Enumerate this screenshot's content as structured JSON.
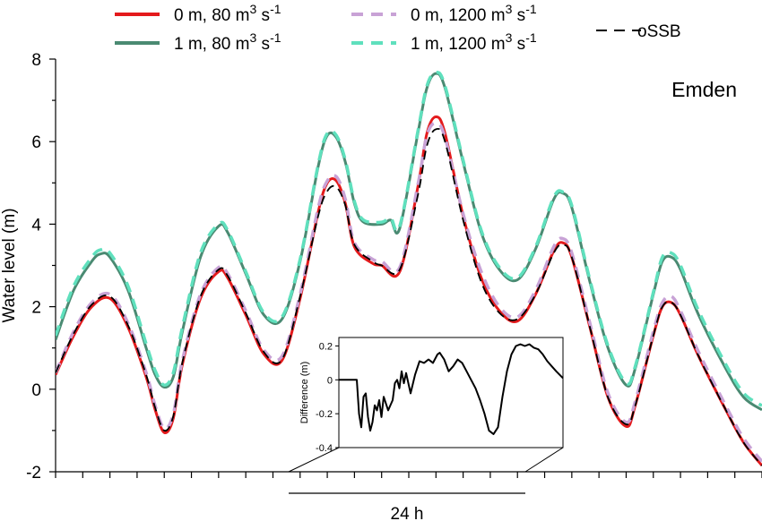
{
  "chart_data": {
    "type": "line",
    "ylabel": "Water level (m)",
    "ylim": [
      -2,
      8
    ],
    "yticks": [
      -2,
      0,
      2,
      4,
      6,
      8
    ],
    "xlim": [
      0,
      78
    ],
    "annotation": "Emden",
    "scale_bar_label": "24 h",
    "legend": [
      {
        "label": "0 m, 80 m",
        "sup": "3",
        "tail": " s",
        "sup2": "-1",
        "color": "#e41a1c",
        "dash": "solid"
      },
      {
        "label": "1 m, 80 m",
        "sup": "3",
        "tail": " s",
        "sup2": "-1",
        "color": "#4a8a72",
        "dash": "solid"
      },
      {
        "label": "0 m, 1200 m",
        "sup": "3",
        "tail": " s",
        "sup2": "-1",
        "color": "#c8a2d6",
        "dash": "dashed"
      },
      {
        "label": "1 m, 1200 m",
        "sup": "3",
        "tail": " s",
        "sup2": "-1",
        "color": "#5fe0bd",
        "dash": "dashed"
      },
      {
        "label": "oSSB",
        "color": "#000000",
        "dash": "dashed"
      }
    ],
    "series": [
      {
        "name": "0 m, 80 m3 s-1",
        "color": "#e41a1c",
        "width": 3,
        "dash": "",
        "points": [
          [
            0,
            0.35
          ],
          [
            2,
            1.3
          ],
          [
            4,
            2.0
          ],
          [
            6,
            2.2
          ],
          [
            8,
            1.5
          ],
          [
            10,
            0.3
          ],
          [
            11,
            -0.5
          ],
          [
            12,
            -1.05
          ],
          [
            13,
            -0.7
          ],
          [
            14,
            0.6
          ],
          [
            16,
            2.2
          ],
          [
            18,
            2.85
          ],
          [
            19,
            2.7
          ],
          [
            21,
            1.8
          ],
          [
            23,
            0.85
          ],
          [
            25,
            0.7
          ],
          [
            27,
            2.2
          ],
          [
            29,
            4.3
          ],
          [
            30,
            5.0
          ],
          [
            31,
            5.05
          ],
          [
            32,
            4.5
          ],
          [
            33,
            3.45
          ],
          [
            35,
            3.05
          ],
          [
            36,
            3.0
          ],
          [
            38,
            2.85
          ],
          [
            40,
            4.9
          ],
          [
            41,
            6.2
          ],
          [
            42,
            6.6
          ],
          [
            43,
            6.2
          ],
          [
            45,
            4.2
          ],
          [
            47,
            2.7
          ],
          [
            49,
            1.9
          ],
          [
            51,
            1.65
          ],
          [
            53,
            2.3
          ],
          [
            55,
            3.35
          ],
          [
            56,
            3.55
          ],
          [
            57,
            3.2
          ],
          [
            59,
            1.5
          ],
          [
            61,
            -0.2
          ],
          [
            63,
            -0.9
          ],
          [
            64,
            -0.4
          ],
          [
            66,
            1.3
          ],
          [
            67,
            2.0
          ],
          [
            68,
            2.1
          ],
          [
            69,
            1.8
          ],
          [
            71,
            0.8
          ],
          [
            74,
            -0.5
          ],
          [
            76,
            -1.3
          ],
          [
            78,
            -1.85
          ]
        ]
      },
      {
        "name": "1 m, 80 m3 s-1",
        "color": "#4a8a72",
        "width": 3,
        "dash": "",
        "points": [
          [
            0,
            1.2
          ],
          [
            2,
            2.4
          ],
          [
            4,
            3.1
          ],
          [
            5,
            3.28
          ],
          [
            6,
            3.2
          ],
          [
            8,
            2.4
          ],
          [
            10,
            1.0
          ],
          [
            11,
            0.35
          ],
          [
            12,
            0.05
          ],
          [
            13,
            0.3
          ],
          [
            14,
            1.4
          ],
          [
            16,
            3.2
          ],
          [
            18,
            3.95
          ],
          [
            19,
            3.8
          ],
          [
            21,
            2.8
          ],
          [
            23,
            1.8
          ],
          [
            25,
            1.7
          ],
          [
            27,
            3.1
          ],
          [
            29,
            5.4
          ],
          [
            30,
            6.15
          ],
          [
            31,
            6.1
          ],
          [
            32,
            5.5
          ],
          [
            33,
            4.5
          ],
          [
            34,
            4.05
          ],
          [
            36,
            4.0
          ],
          [
            37,
            4.1
          ],
          [
            38,
            3.9
          ],
          [
            40,
            6.2
          ],
          [
            41,
            7.3
          ],
          [
            42,
            7.65
          ],
          [
            43,
            7.3
          ],
          [
            45,
            5.5
          ],
          [
            47,
            3.8
          ],
          [
            49,
            2.9
          ],
          [
            51,
            2.65
          ],
          [
            53,
            3.4
          ],
          [
            55,
            4.6
          ],
          [
            56,
            4.75
          ],
          [
            57,
            4.4
          ],
          [
            59,
            2.6
          ],
          [
            61,
            1.0
          ],
          [
            63,
            0.1
          ],
          [
            64,
            0.5
          ],
          [
            66,
            2.3
          ],
          [
            67,
            3.1
          ],
          [
            68,
            3.2
          ],
          [
            69,
            2.9
          ],
          [
            71,
            1.8
          ],
          [
            74,
            0.5
          ],
          [
            76,
            -0.2
          ],
          [
            78,
            -0.5
          ]
        ]
      },
      {
        "name": "0 m, 1200 m3 s-1",
        "color": "#c8a2d6",
        "width": 3.5,
        "dash": "12 8",
        "points": [
          [
            0,
            0.4
          ],
          [
            2,
            1.4
          ],
          [
            4,
            2.1
          ],
          [
            6,
            2.3
          ],
          [
            8,
            1.6
          ],
          [
            10,
            0.4
          ],
          [
            11,
            -0.4
          ],
          [
            12,
            -0.95
          ],
          [
            13,
            -0.6
          ],
          [
            14,
            0.7
          ],
          [
            16,
            2.3
          ],
          [
            18,
            2.95
          ],
          [
            19,
            2.8
          ],
          [
            21,
            1.9
          ],
          [
            23,
            0.95
          ],
          [
            25,
            0.8
          ],
          [
            27,
            2.3
          ],
          [
            29,
            4.4
          ],
          [
            30,
            5.05
          ],
          [
            31,
            5.15
          ],
          [
            32,
            4.6
          ],
          [
            33,
            3.55
          ],
          [
            35,
            3.15
          ],
          [
            36,
            3.1
          ],
          [
            38,
            2.95
          ],
          [
            40,
            4.95
          ],
          [
            41,
            6.15
          ],
          [
            42,
            6.45
          ],
          [
            43,
            6.1
          ],
          [
            45,
            4.25
          ],
          [
            47,
            2.85
          ],
          [
            49,
            2.0
          ],
          [
            51,
            1.75
          ],
          [
            53,
            2.4
          ],
          [
            55,
            3.45
          ],
          [
            56,
            3.65
          ],
          [
            57,
            3.3
          ],
          [
            59,
            1.6
          ],
          [
            61,
            -0.1
          ],
          [
            63,
            -0.8
          ],
          [
            64,
            -0.3
          ],
          [
            66,
            1.4
          ],
          [
            67,
            2.1
          ],
          [
            68,
            2.25
          ],
          [
            69,
            1.9
          ],
          [
            71,
            0.9
          ],
          [
            74,
            -0.4
          ],
          [
            76,
            -1.2
          ],
          [
            78,
            -1.75
          ]
        ]
      },
      {
        "name": "1 m, 1200 m3 s-1",
        "color": "#5fe0bd",
        "width": 3.5,
        "dash": "12 8",
        "points": [
          [
            0,
            1.3
          ],
          [
            2,
            2.5
          ],
          [
            4,
            3.2
          ],
          [
            5,
            3.38
          ],
          [
            6,
            3.3
          ],
          [
            8,
            2.5
          ],
          [
            10,
            1.1
          ],
          [
            11,
            0.45
          ],
          [
            12,
            0.1
          ],
          [
            13,
            0.4
          ],
          [
            14,
            1.5
          ],
          [
            16,
            3.3
          ],
          [
            18,
            4.0
          ],
          [
            19,
            3.85
          ],
          [
            21,
            2.85
          ],
          [
            23,
            1.85
          ],
          [
            25,
            1.75
          ],
          [
            27,
            3.15
          ],
          [
            29,
            5.45
          ],
          [
            30,
            6.2
          ],
          [
            31,
            6.15
          ],
          [
            32,
            5.55
          ],
          [
            33,
            4.55
          ],
          [
            34,
            4.1
          ],
          [
            36,
            4.05
          ],
          [
            37,
            4.15
          ],
          [
            38,
            3.95
          ],
          [
            40,
            6.25
          ],
          [
            41,
            7.35
          ],
          [
            42,
            7.68
          ],
          [
            43,
            7.35
          ],
          [
            45,
            5.55
          ],
          [
            47,
            3.85
          ],
          [
            49,
            2.95
          ],
          [
            51,
            2.7
          ],
          [
            53,
            3.45
          ],
          [
            55,
            4.65
          ],
          [
            56,
            4.78
          ],
          [
            57,
            4.45
          ],
          [
            59,
            2.65
          ],
          [
            61,
            1.05
          ],
          [
            63,
            0.15
          ],
          [
            64,
            0.55
          ],
          [
            66,
            2.35
          ],
          [
            67,
            3.2
          ],
          [
            68,
            3.3
          ],
          [
            69,
            3.0
          ],
          [
            71,
            1.9
          ],
          [
            74,
            0.6
          ],
          [
            76,
            -0.1
          ],
          [
            78,
            -0.4
          ]
        ]
      },
      {
        "name": "oSSB",
        "color": "#000000",
        "width": 1.8,
        "dash": "10 6",
        "points": [
          [
            0,
            0.4
          ],
          [
            2,
            1.35
          ],
          [
            4,
            2.05
          ],
          [
            6,
            2.25
          ],
          [
            8,
            1.55
          ],
          [
            10,
            0.35
          ],
          [
            11,
            -0.45
          ],
          [
            12,
            -1.0
          ],
          [
            13,
            -0.65
          ],
          [
            14,
            0.65
          ],
          [
            16,
            2.25
          ],
          [
            18,
            2.9
          ],
          [
            19,
            2.75
          ],
          [
            21,
            1.85
          ],
          [
            23,
            0.9
          ],
          [
            25,
            0.72
          ],
          [
            27,
            2.25
          ],
          [
            29,
            4.2
          ],
          [
            30,
            4.8
          ],
          [
            31,
            4.9
          ],
          [
            32,
            4.45
          ],
          [
            33,
            3.5
          ],
          [
            35,
            3.1
          ],
          [
            36,
            3.0
          ],
          [
            38,
            2.9
          ],
          [
            40,
            4.7
          ],
          [
            41,
            5.9
          ],
          [
            42,
            6.3
          ],
          [
            43,
            6.0
          ],
          [
            45,
            4.1
          ],
          [
            47,
            2.6
          ],
          [
            49,
            1.85
          ],
          [
            51,
            1.7
          ],
          [
            53,
            2.3
          ],
          [
            55,
            3.3
          ],
          [
            56,
            3.5
          ],
          [
            57,
            3.2
          ],
          [
            59,
            1.5
          ],
          [
            61,
            -0.2
          ],
          [
            63,
            -0.85
          ],
          [
            64,
            -0.4
          ],
          [
            66,
            1.3
          ],
          [
            67,
            2.0
          ],
          [
            68,
            2.1
          ],
          [
            69,
            1.8
          ],
          [
            71,
            0.8
          ],
          [
            74,
            -0.5
          ],
          [
            76,
            -1.3
          ],
          [
            78,
            -1.85
          ]
        ]
      }
    ],
    "inset": {
      "ylabel": "Difference (m)",
      "ylim": [
        -0.4,
        0.25
      ],
      "yticks": [
        -0.4,
        -0.2,
        0,
        0.2
      ],
      "ytick_labels": [
        "-0.4",
        "-0.2",
        "0",
        "0.2"
      ],
      "xlim": [
        0,
        100
      ],
      "points": [
        [
          0,
          0
        ],
        [
          7,
          0
        ],
        [
          8,
          0.0
        ],
        [
          9,
          -0.2
        ],
        [
          10,
          -0.28
        ],
        [
          11,
          -0.1
        ],
        [
          12,
          -0.08
        ],
        [
          13,
          -0.22
        ],
        [
          14,
          -0.3
        ],
        [
          15,
          -0.25
        ],
        [
          16,
          -0.15
        ],
        [
          17,
          -0.18
        ],
        [
          18,
          -0.12
        ],
        [
          19,
          -0.22
        ],
        [
          20,
          -0.1
        ],
        [
          22,
          -0.18
        ],
        [
          24,
          -0.12
        ],
        [
          25,
          -0.02
        ],
        [
          26,
          0.0
        ],
        [
          27,
          -0.05
        ],
        [
          28,
          0.05
        ],
        [
          29,
          -0.02
        ],
        [
          30,
          0.04
        ],
        [
          32,
          -0.08
        ],
        [
          34,
          0.03
        ],
        [
          36,
          0.11
        ],
        [
          38,
          0.1
        ],
        [
          40,
          0.12
        ],
        [
          42,
          0.1
        ],
        [
          44,
          0.15
        ],
        [
          45,
          0.16
        ],
        [
          47,
          0.12
        ],
        [
          49,
          0.05
        ],
        [
          51,
          0.08
        ],
        [
          53,
          0.12
        ],
        [
          55,
          0.1
        ],
        [
          57,
          0.05
        ],
        [
          59,
          0.0
        ],
        [
          61,
          -0.05
        ],
        [
          63,
          -0.12
        ],
        [
          65,
          -0.2
        ],
        [
          67,
          -0.3
        ],
        [
          69,
          -0.32
        ],
        [
          71,
          -0.28
        ],
        [
          73,
          -0.1
        ],
        [
          75,
          0.05
        ],
        [
          77,
          0.15
        ],
        [
          79,
          0.2
        ],
        [
          81,
          0.21
        ],
        [
          83,
          0.2
        ],
        [
          85,
          0.21
        ],
        [
          87,
          0.19
        ],
        [
          89,
          0.18
        ],
        [
          91,
          0.15
        ],
        [
          93,
          0.11
        ],
        [
          95,
          0.08
        ],
        [
          97,
          0.05
        ],
        [
          100,
          0.01
        ]
      ]
    }
  }
}
